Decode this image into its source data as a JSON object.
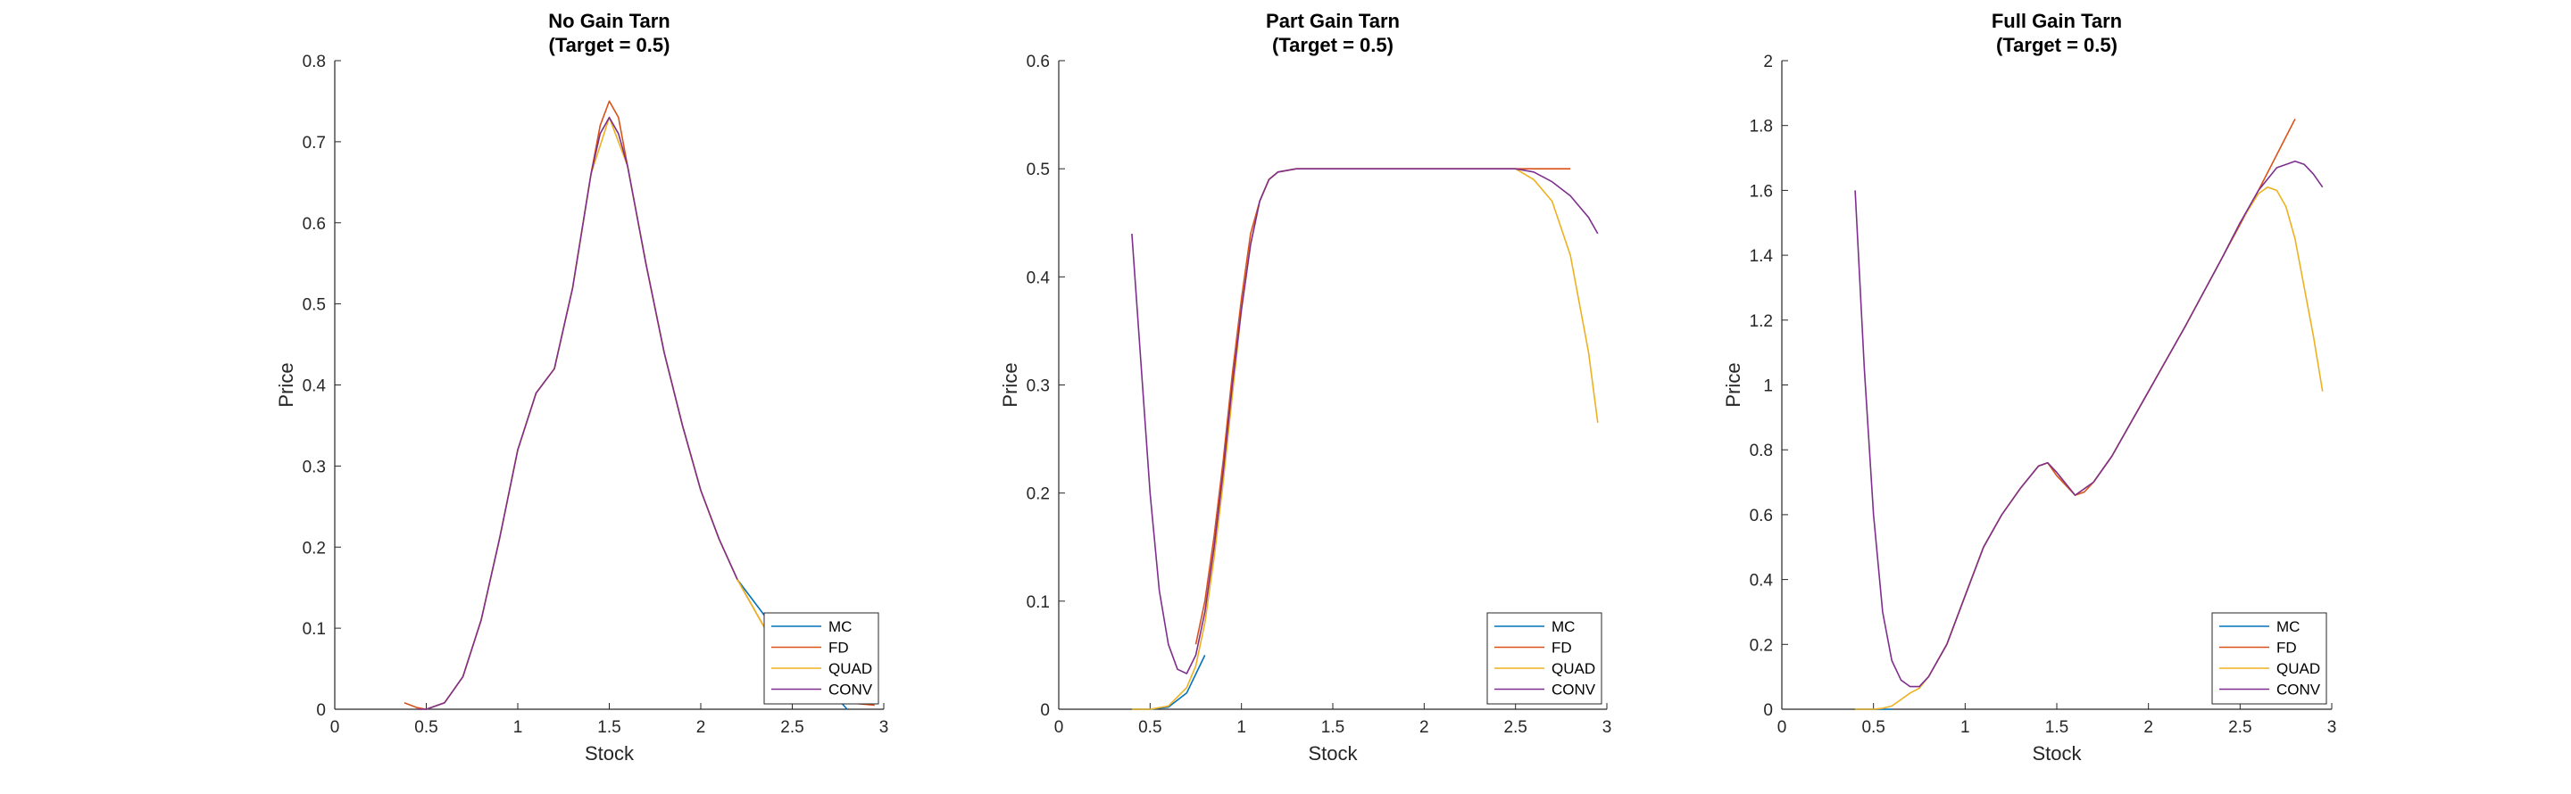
{
  "chart_data": [
    {
      "type": "line",
      "title": [
        "No Gain Tarn",
        "(Target = 0.5)"
      ],
      "xlabel": "Stock",
      "ylabel": "Price",
      "xlim": [
        0,
        3
      ],
      "ylim": [
        0,
        0.8
      ],
      "xticks": [
        "0",
        "0.5",
        "1",
        "1.5",
        "2",
        "2.5",
        "3"
      ],
      "yticks": [
        "0",
        "0.1",
        "0.2",
        "0.3",
        "0.4",
        "0.5",
        "0.6",
        "0.7",
        "0.8"
      ],
      "legend": "bottom-right",
      "grid": false,
      "series": [
        {
          "name": "MC",
          "color": "#0072BD",
          "x": [
            2.2,
            2.35,
            2.5,
            2.6,
            2.7,
            2.8
          ],
          "y": [
            0.16,
            0.115,
            0.075,
            0.05,
            0.025,
            0.0
          ]
        },
        {
          "name": "FD",
          "color": "#D95319",
          "x": [
            0.38,
            0.45,
            0.5,
            0.6,
            0.7,
            0.8,
            0.9,
            1.0,
            1.1,
            1.2,
            1.3,
            1.4,
            1.45,
            1.5,
            1.55,
            1.6,
            1.7,
            1.8,
            1.9,
            2.0,
            2.1,
            2.2,
            2.3,
            2.4,
            2.5,
            2.6,
            2.7,
            2.8,
            2.95
          ],
          "y": [
            0.008,
            0.002,
            0.0,
            0.008,
            0.04,
            0.11,
            0.21,
            0.32,
            0.39,
            0.42,
            0.52,
            0.66,
            0.72,
            0.75,
            0.73,
            0.67,
            0.55,
            0.44,
            0.35,
            0.27,
            0.21,
            0.16,
            0.12,
            0.08,
            0.05,
            0.03,
            0.016,
            0.008,
            0.005
          ]
        },
        {
          "name": "QUAD",
          "color": "#EDB120",
          "x": [
            0.5,
            0.6,
            0.7,
            0.8,
            0.9,
            1.0,
            1.1,
            1.2,
            1.3,
            1.4,
            1.5,
            1.6,
            1.7,
            1.8,
            1.9,
            2.0,
            2.1,
            2.2,
            2.3,
            2.4,
            2.5,
            2.6
          ],
          "y": [
            0.0,
            0.008,
            0.04,
            0.11,
            0.21,
            0.32,
            0.39,
            0.42,
            0.52,
            0.66,
            0.73,
            0.67,
            0.55,
            0.44,
            0.35,
            0.27,
            0.21,
            0.16,
            0.12,
            0.08,
            0.05,
            0.03
          ]
        },
        {
          "name": "CONV",
          "color": "#7E2F8E",
          "x": [
            0.45,
            0.5,
            0.6,
            0.7,
            0.8,
            0.9,
            1.0,
            1.1,
            1.2,
            1.3,
            1.4,
            1.45,
            1.5,
            1.55,
            1.6,
            1.7,
            1.8,
            1.9,
            2.0,
            2.1,
            2.2
          ],
          "y": [
            0.0,
            0.0,
            0.008,
            0.04,
            0.11,
            0.21,
            0.32,
            0.39,
            0.42,
            0.52,
            0.66,
            0.71,
            0.73,
            0.71,
            0.67,
            0.55,
            0.44,
            0.35,
            0.27,
            0.21,
            0.16
          ]
        }
      ]
    },
    {
      "type": "line",
      "title": [
        "Part Gain Tarn",
        "(Target = 0.5)"
      ],
      "xlabel": "Stock",
      "ylabel": "Price",
      "xlim": [
        0,
        3
      ],
      "ylim": [
        0,
        0.6
      ],
      "xticks": [
        "0",
        "0.5",
        "1",
        "1.5",
        "2",
        "2.5",
        "3"
      ],
      "yticks": [
        "0",
        "0.1",
        "0.2",
        "0.3",
        "0.4",
        "0.5",
        "0.6"
      ],
      "legend": "bottom-right",
      "grid": false,
      "series": [
        {
          "name": "MC",
          "color": "#0072BD",
          "x": [
            0.4,
            0.5,
            0.6,
            0.7,
            0.8
          ],
          "y": [
            0.0,
            0.0,
            0.002,
            0.015,
            0.05
          ]
        },
        {
          "name": "FD",
          "color": "#D95319",
          "x": [
            0.75,
            0.8,
            0.85,
            0.9,
            0.95,
            1.0,
            1.05,
            1.1,
            1.15,
            1.2,
            1.3,
            1.4,
            1.5,
            2.0,
            2.5,
            2.8
          ],
          "y": [
            0.06,
            0.1,
            0.16,
            0.23,
            0.31,
            0.38,
            0.44,
            0.47,
            0.49,
            0.497,
            0.5,
            0.5,
            0.5,
            0.5,
            0.5,
            0.5
          ]
        },
        {
          "name": "QUAD",
          "color": "#EDB120",
          "x": [
            0.4,
            0.5,
            0.6,
            0.7,
            0.75,
            0.8,
            0.85,
            0.9,
            0.95,
            1.0,
            1.05,
            1.1,
            1.15,
            1.2,
            1.3,
            1.5,
            2.0,
            2.5,
            2.6,
            2.7,
            2.8,
            2.9,
            2.95
          ],
          "y": [
            0.0,
            0.0,
            0.003,
            0.02,
            0.04,
            0.08,
            0.14,
            0.21,
            0.29,
            0.37,
            0.43,
            0.47,
            0.49,
            0.497,
            0.5,
            0.5,
            0.5,
            0.5,
            0.49,
            0.47,
            0.42,
            0.33,
            0.265
          ]
        },
        {
          "name": "CONV",
          "color": "#7E2F8E",
          "x": [
            0.4,
            0.45,
            0.5,
            0.55,
            0.6,
            0.65,
            0.7,
            0.75,
            0.8,
            0.85,
            0.9,
            0.95,
            1.0,
            1.05,
            1.1,
            1.15,
            1.2,
            1.3,
            1.5,
            2.0,
            2.5,
            2.6,
            2.7,
            2.8,
            2.9,
            2.95
          ],
          "y": [
            0.44,
            0.32,
            0.2,
            0.11,
            0.06,
            0.037,
            0.033,
            0.05,
            0.09,
            0.15,
            0.22,
            0.3,
            0.37,
            0.43,
            0.47,
            0.49,
            0.497,
            0.5,
            0.5,
            0.5,
            0.5,
            0.497,
            0.488,
            0.475,
            0.455,
            0.44
          ]
        }
      ]
    },
    {
      "type": "line",
      "title": [
        "Full Gain Tarn",
        "(Target = 0.5)"
      ],
      "xlabel": "Stock",
      "ylabel": "Price",
      "xlim": [
        0,
        3
      ],
      "ylim": [
        0,
        2
      ],
      "xticks": [
        "0",
        "0.5",
        "1",
        "1.5",
        "2",
        "2.5",
        "3"
      ],
      "yticks": [
        "0",
        "0.2",
        "0.4",
        "0.6",
        "0.8",
        "1",
        "1.2",
        "1.4",
        "1.6",
        "1.8",
        "2"
      ],
      "legend": "bottom-right",
      "grid": false,
      "series": [
        {
          "name": "MC",
          "color": "#0072BD",
          "x": [
            0.4,
            0.5,
            0.6
          ],
          "y": [
            0.0,
            0.0,
            0.0
          ]
        },
        {
          "name": "FD",
          "color": "#D95319",
          "x": [
            0.8,
            0.9,
            1.0,
            1.1,
            1.2,
            1.3,
            1.4,
            1.45,
            1.5,
            1.55,
            1.6,
            1.65,
            1.7,
            1.8,
            2.0,
            2.2,
            2.4,
            2.6,
            2.8
          ],
          "y": [
            0.1,
            0.2,
            0.35,
            0.5,
            0.6,
            0.68,
            0.75,
            0.76,
            0.72,
            0.69,
            0.66,
            0.67,
            0.7,
            0.78,
            0.98,
            1.18,
            1.39,
            1.6,
            1.82
          ]
        },
        {
          "name": "QUAD",
          "color": "#EDB120",
          "x": [
            0.4,
            0.5,
            0.55,
            0.6,
            0.65,
            0.7,
            0.75,
            0.8,
            0.9,
            1.0,
            1.1,
            1.2,
            1.3,
            1.4,
            1.45,
            1.5,
            1.6,
            1.7,
            1.8,
            2.0,
            2.2,
            2.4,
            2.5,
            2.6,
            2.65,
            2.7,
            2.75,
            2.8,
            2.85,
            2.9,
            2.95
          ],
          "y": [
            0.0,
            0.0,
            0.003,
            0.01,
            0.03,
            0.05,
            0.065,
            0.1,
            0.2,
            0.35,
            0.5,
            0.6,
            0.68,
            0.75,
            0.76,
            0.73,
            0.66,
            0.7,
            0.78,
            0.98,
            1.18,
            1.39,
            1.5,
            1.59,
            1.61,
            1.6,
            1.55,
            1.45,
            1.3,
            1.15,
            0.98
          ]
        },
        {
          "name": "CONV",
          "color": "#7E2F8E",
          "x": [
            0.4,
            0.45,
            0.5,
            0.55,
            0.6,
            0.65,
            0.7,
            0.75,
            0.8,
            0.9,
            1.0,
            1.1,
            1.2,
            1.3,
            1.4,
            1.45,
            1.5,
            1.6,
            1.7,
            1.8,
            2.0,
            2.2,
            2.4,
            2.5,
            2.6,
            2.7,
            2.8,
            2.85,
            2.9,
            2.95
          ],
          "y": [
            1.6,
            1.05,
            0.6,
            0.3,
            0.15,
            0.09,
            0.07,
            0.07,
            0.1,
            0.2,
            0.35,
            0.5,
            0.6,
            0.68,
            0.75,
            0.76,
            0.73,
            0.66,
            0.7,
            0.78,
            0.98,
            1.18,
            1.39,
            1.5,
            1.6,
            1.67,
            1.69,
            1.68,
            1.65,
            1.61
          ]
        }
      ]
    }
  ]
}
